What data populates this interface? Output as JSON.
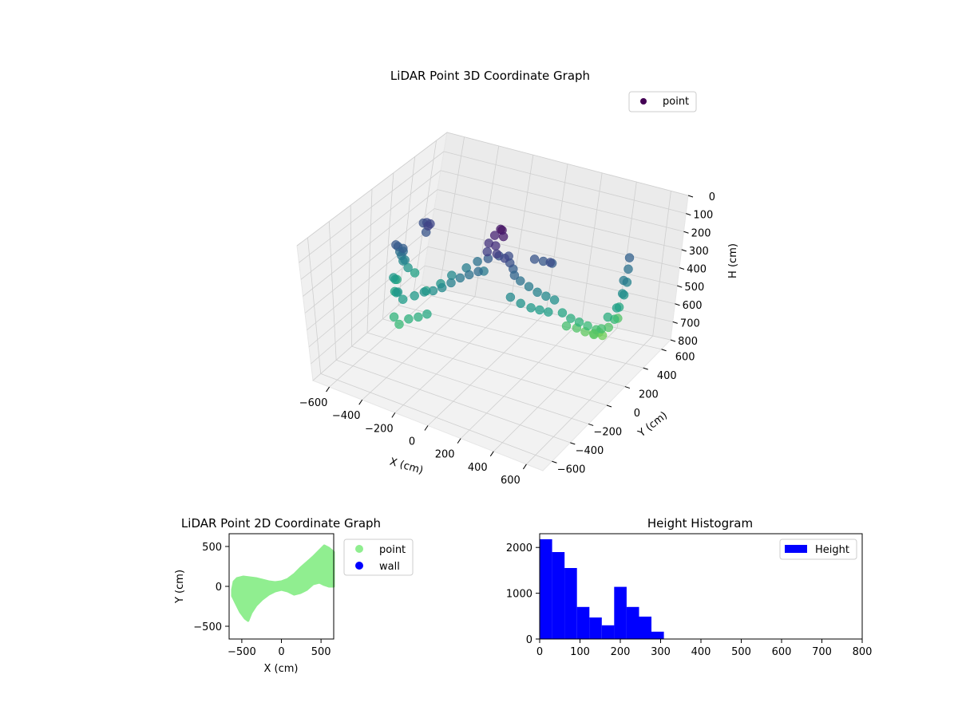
{
  "figure": {
    "background": "#ffffff"
  },
  "chart_data": [
    {
      "type": "scatter",
      "projection": "3d",
      "title": "LiDAR Point 3D Coordinate Graph",
      "xlabel": "X (cm)",
      "ylabel": "Y (cm)",
      "zlabel": "H (cm)",
      "xlim": [
        -700,
        700
      ],
      "ylim": [
        -700,
        700
      ],
      "zlim": [
        800,
        0
      ],
      "xticks": [
        "−600",
        "−400",
        "−200",
        "0",
        "200",
        "400",
        "600"
      ],
      "yticks": [
        "−600",
        "−400",
        "−200",
        "0",
        "200",
        "400",
        "600"
      ],
      "zticks": [
        "0",
        "100",
        "200",
        "300",
        "400",
        "500",
        "600",
        "700",
        "800"
      ],
      "grid": true,
      "legend": {
        "location": "upper-right",
        "entries": [
          {
            "label": "point",
            "color": "#440154"
          }
        ]
      },
      "colormap": "viridis",
      "series": [
        {
          "name": "point",
          "points": [
            [
              -520,
              80,
              420
            ],
            [
              -520,
              40,
              360
            ],
            [
              -530,
              0,
              300
            ],
            [
              -520,
              -40,
              250
            ],
            [
              -510,
              -80,
              220
            ],
            [
              -500,
              120,
              460
            ],
            [
              -540,
              60,
              380
            ],
            [
              -530,
              20,
              330
            ],
            [
              -500,
              -20,
              280
            ],
            [
              -480,
              -60,
              240
            ],
            [
              -490,
              160,
              200
            ],
            [
              -460,
              140,
              180
            ],
            [
              -430,
              120,
              170
            ],
            [
              -440,
              100,
              210
            ],
            [
              -420,
              80,
              160
            ],
            [
              -560,
              40,
              480
            ],
            [
              -550,
              0,
              460
            ],
            [
              -540,
              -40,
              430
            ],
            [
              -500,
              -100,
              470
            ],
            [
              -470,
              -140,
              450
            ],
            [
              -440,
              -180,
              420
            ],
            [
              -400,
              -200,
              440
            ],
            [
              -360,
              -150,
              430
            ],
            [
              -320,
              -120,
              410
            ],
            [
              -280,
              -100,
              400
            ],
            [
              -240,
              -80,
              380
            ],
            [
              -200,
              -60,
              350
            ],
            [
              -160,
              -40,
              320
            ],
            [
              -120,
              -20,
              300
            ],
            [
              -80,
              0,
              280
            ],
            [
              -420,
              -260,
              520
            ],
            [
              -380,
              -280,
              540
            ],
            [
              -340,
              -250,
              510
            ],
            [
              -300,
              -220,
              500
            ],
            [
              -260,
              -200,
              480
            ],
            [
              -40,
              20,
              120
            ],
            [
              -20,
              40,
              80
            ],
            [
              0,
              60,
              50
            ],
            [
              20,
              40,
              40
            ],
            [
              40,
              20,
              60
            ],
            [
              -30,
              -10,
              150
            ],
            [
              10,
              0,
              110
            ],
            [
              30,
              -20,
              140
            ],
            [
              60,
              10,
              170
            ],
            [
              80,
              30,
              200
            ],
            [
              -60,
              60,
              230
            ],
            [
              -10,
              80,
              210
            ],
            [
              50,
              70,
              190
            ],
            [
              90,
              50,
              240
            ],
            [
              110,
              30,
              260
            ],
            [
              130,
              60,
              300
            ],
            [
              170,
              80,
              330
            ],
            [
              210,
              100,
              360
            ],
            [
              250,
              120,
              380
            ],
            [
              290,
              140,
              400
            ],
            [
              100,
              20,
              380
            ],
            [
              150,
              40,
              410
            ],
            [
              200,
              60,
              430
            ],
            [
              240,
              80,
              440
            ],
            [
              280,
              100,
              450
            ],
            [
              330,
              160,
              470
            ],
            [
              370,
              180,
              500
            ],
            [
              410,
              200,
              520
            ],
            [
              450,
              220,
              540
            ],
            [
              490,
              240,
              560
            ],
            [
              340,
              200,
              560
            ],
            [
              380,
              240,
              580
            ],
            [
              420,
              260,
              600
            ],
            [
              460,
              280,
              610
            ],
            [
              500,
              300,
              620
            ],
            [
              520,
              320,
              580
            ],
            [
              540,
              340,
              540
            ],
            [
              550,
              360,
              480
            ],
            [
              560,
              380,
              420
            ],
            [
              560,
              400,
              360
            ],
            [
              550,
              420,
              300
            ],
            [
              540,
              440,
              250
            ],
            [
              560,
              360,
              330
            ],
            [
              570,
              340,
              390
            ],
            [
              565,
              300,
              450
            ],
            [
              530,
              280,
              500
            ],
            [
              510,
              260,
              560
            ],
            [
              480,
              240,
              590
            ],
            [
              470,
              320,
              620
            ],
            [
              520,
              420,
              580
            ],
            [
              160,
              140,
              210
            ],
            [
              200,
              160,
              220
            ],
            [
              240,
              180,
              230
            ],
            [
              260,
              120,
              190
            ],
            [
              -150,
              120,
              300
            ],
            [
              -100,
              100,
              330
            ],
            [
              -200,
              100,
              340
            ],
            [
              -260,
              60,
              380
            ],
            [
              -300,
              20,
              420
            ],
            [
              -360,
              -20,
              460
            ]
          ]
        }
      ]
    },
    {
      "type": "scatter",
      "title": "LiDAR Point 2D Coordinate Graph",
      "xlabel": "X (cm)",
      "ylabel": "Y (cm)",
      "xlim": [
        -660,
        660
      ],
      "ylim": [
        -660,
        660
      ],
      "xticks": [
        -500,
        0,
        500
      ],
      "yticks": [
        -500,
        0,
        500
      ],
      "legend": {
        "location": "outside-right",
        "entries": [
          {
            "label": "point",
            "color": "#90ee90"
          },
          {
            "label": "wall",
            "color": "#0000ff"
          }
        ]
      },
      "series": [
        {
          "name": "point",
          "color": "#90ee90",
          "region_outline": [
            [
              -620,
              -40
            ],
            [
              -600,
              60
            ],
            [
              -560,
              100
            ],
            [
              -480,
              120
            ],
            [
              -400,
              110
            ],
            [
              -320,
              100
            ],
            [
              -240,
              80
            ],
            [
              -160,
              60
            ],
            [
              -80,
              50
            ],
            [
              0,
              60
            ],
            [
              80,
              90
            ],
            [
              160,
              150
            ],
            [
              240,
              230
            ],
            [
              320,
              300
            ],
            [
              400,
              370
            ],
            [
              480,
              450
            ],
            [
              540,
              510
            ],
            [
              600,
              480
            ],
            [
              660,
              430
            ],
            [
              660,
              0
            ],
            [
              600,
              0
            ],
            [
              540,
              20
            ],
            [
              480,
              50
            ],
            [
              400,
              30
            ],
            [
              320,
              -40
            ],
            [
              240,
              -80
            ],
            [
              160,
              -100
            ],
            [
              80,
              -60
            ],
            [
              0,
              -40
            ],
            [
              -80,
              -60
            ],
            [
              -160,
              -100
            ],
            [
              -240,
              -160
            ],
            [
              -320,
              -240
            ],
            [
              -380,
              -330
            ],
            [
              -420,
              -430
            ],
            [
              -460,
              -400
            ],
            [
              -520,
              -320
            ],
            [
              -580,
              -200
            ],
            [
              -620,
              -120
            ]
          ]
        },
        {
          "name": "wall",
          "color": "#0000ff",
          "points": []
        }
      ]
    },
    {
      "type": "bar",
      "subtype": "histogram",
      "title": "Height Histogram",
      "xlabel": "",
      "ylabel": "",
      "xlim": [
        0,
        800
      ],
      "ylim": [
        0,
        2300
      ],
      "xticks": [
        0,
        100,
        200,
        300,
        400,
        500,
        600,
        700,
        800
      ],
      "yticks": [
        0,
        1000,
        2000
      ],
      "bin_width": 30.8,
      "legend": {
        "location": "upper-right",
        "entries": [
          {
            "label": "Height",
            "color": "#0000ff"
          }
        ]
      },
      "series": [
        {
          "name": "Height",
          "color": "#0000ff",
          "bin_starts": [
            0,
            30.8,
            61.6,
            92.4,
            123.2,
            154,
            184.8,
            215.6,
            246.4,
            277.2
          ],
          "values": [
            2180,
            1900,
            1550,
            700,
            470,
            300,
            1140,
            700,
            490,
            160
          ]
        }
      ]
    }
  ]
}
